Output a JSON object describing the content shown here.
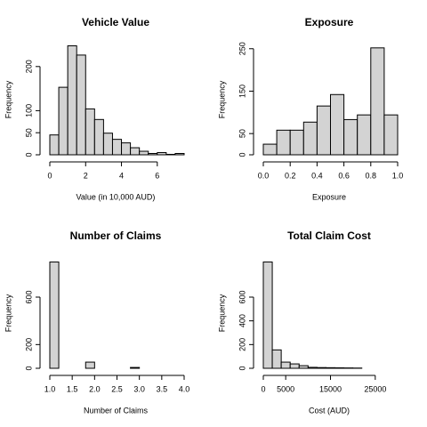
{
  "chart_data": [
    {
      "type": "histogram",
      "title": "Vehicle Value",
      "xlabel": "Value (in 10,000 AUD)",
      "ylabel": "Frequency",
      "bins": [
        0,
        0.5,
        1,
        1.5,
        2,
        2.5,
        3,
        3.5,
        4,
        4.5,
        5,
        5.5,
        6,
        6.5,
        7,
        7.5
      ],
      "values": [
        45,
        153,
        247,
        226,
        104,
        80,
        49,
        35,
        27,
        16,
        8,
        3,
        5,
        1,
        3
      ],
      "color": "#d3d3d3",
      "xlim": [
        0,
        7.5
      ],
      "xticks": [
        0,
        2,
        4,
        6
      ],
      "ylim": [
        0,
        250
      ],
      "yticks": [
        0,
        50,
        100,
        200
      ]
    },
    {
      "type": "histogram",
      "title": "Exposure",
      "xlabel": "Exposure",
      "ylabel": "Frequency",
      "bins": [
        0,
        0.1,
        0.2,
        0.3,
        0.4,
        0.5,
        0.6,
        0.7,
        0.8,
        0.9,
        1
      ],
      "values": [
        25,
        58,
        58,
        77,
        115,
        142,
        83,
        94,
        252,
        94
      ],
      "color": "#d3d3d3",
      "xlim": [
        0,
        1
      ],
      "xticks": [
        {
          "value": 0,
          "label": "0.0"
        },
        0.2,
        0.4,
        0.6,
        0.8,
        {
          "value": 1,
          "label": "1.0"
        }
      ],
      "ylim": [
        0,
        260
      ],
      "yticks": [
        0,
        50,
        150,
        250
      ]
    },
    {
      "type": "histogram",
      "title": "Number of Claims",
      "xlabel": "Number of Claims",
      "ylabel": "Frequency",
      "bins": [
        1,
        1.2,
        1.4,
        1.6,
        1.8,
        2,
        2.2,
        2.4,
        2.6,
        2.8,
        3,
        3.2,
        3.4,
        3.6,
        3.8,
        4
      ],
      "values": [
        896,
        0,
        0,
        0,
        52,
        0,
        0,
        0,
        0,
        7,
        0,
        0,
        0,
        0,
        0
      ],
      "color": "#d3d3d3",
      "xlim": [
        1,
        4
      ],
      "xticks": [
        {
          "value": 1,
          "label": "1.0"
        },
        1.5,
        {
          "value": 2,
          "label": "2.0"
        },
        2.5,
        {
          "value": 3,
          "label": "3.0"
        },
        3.5,
        {
          "value": 4,
          "label": "4.0"
        }
      ],
      "ylim": [
        0,
        930
      ],
      "yticks": [
        0,
        200,
        600
      ]
    },
    {
      "type": "histogram",
      "title": "Total Claim Cost",
      "xlabel": "Cost (AUD)",
      "ylabel": "Frequency",
      "bins": [
        0,
        2000,
        4000,
        6000,
        8000,
        10000,
        12000,
        14000,
        16000,
        18000,
        20000,
        22000
      ],
      "values": [
        896,
        155,
        52,
        37,
        22,
        8,
        6,
        5,
        4,
        3,
        2
      ],
      "color": "#d3d3d3",
      "xlim": [
        0,
        30000
      ],
      "xticks": [
        0,
        5000,
        15000,
        25000
      ],
      "ylim": [
        0,
        930
      ],
      "yticks": [
        0,
        200,
        400,
        600
      ]
    }
  ]
}
